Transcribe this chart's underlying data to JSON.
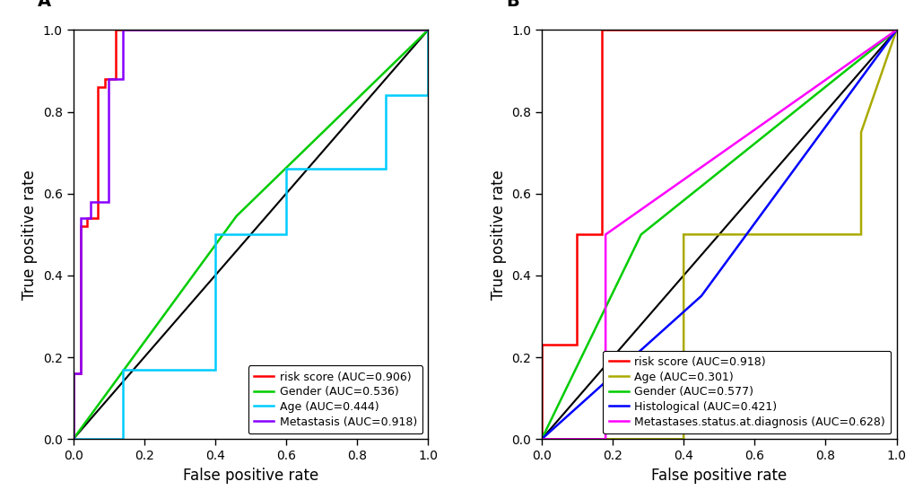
{
  "background_color": "#FFFFFF",
  "linewidth": 1.8,
  "fontsize_label": 12,
  "fontsize_tick": 10,
  "fontsize_title": 14,
  "fontsize_legend": 9,
  "panel_A": {
    "title": "A",
    "xlabel": "False positive rate",
    "ylabel": "True positive rate",
    "curves": [
      {
        "label": "risk score (AUC=0.906)",
        "color": "#FF0000",
        "x": [
          0.0,
          0.0,
          0.02,
          0.02,
          0.04,
          0.04,
          0.07,
          0.07,
          0.09,
          0.09,
          0.12,
          0.12,
          0.16,
          0.16,
          1.0
        ],
        "y": [
          0.0,
          0.16,
          0.16,
          0.52,
          0.52,
          0.54,
          0.54,
          0.86,
          0.86,
          0.88,
          0.88,
          1.0,
          1.0,
          1.0,
          1.0
        ]
      },
      {
        "label": "Gender (AUC=0.536)",
        "color": "#00CC00",
        "x": [
          0.0,
          0.46,
          1.0
        ],
        "y": [
          0.0,
          0.545,
          1.0
        ]
      },
      {
        "label": "Age (AUC=0.444)",
        "color": "#00CCFF",
        "x": [
          0.0,
          0.0,
          0.14,
          0.14,
          0.4,
          0.4,
          0.6,
          0.6,
          0.88,
          0.88,
          1.0,
          1.0
        ],
        "y": [
          0.0,
          0.0,
          0.0,
          0.17,
          0.17,
          0.5,
          0.5,
          0.66,
          0.66,
          0.84,
          0.84,
          1.0
        ]
      },
      {
        "label": "Metastasis (AUC=0.918)",
        "color": "#8800FF",
        "x": [
          0.0,
          0.0,
          0.02,
          0.02,
          0.05,
          0.05,
          0.1,
          0.1,
          0.14,
          0.14,
          0.17,
          0.17,
          1.0
        ],
        "y": [
          0.0,
          0.16,
          0.16,
          0.54,
          0.54,
          0.58,
          0.58,
          0.88,
          0.88,
          1.0,
          1.0,
          1.0,
          1.0
        ]
      }
    ]
  },
  "panel_B": {
    "title": "B",
    "xlabel": "False positive rate",
    "ylabel": "True positive rate",
    "curves": [
      {
        "label": "risk score (AUC=0.918)",
        "color": "#FF0000",
        "x": [
          0.0,
          0.0,
          0.1,
          0.1,
          0.17,
          0.17,
          1.0,
          1.0
        ],
        "y": [
          0.0,
          0.23,
          0.23,
          0.5,
          0.5,
          1.0,
          1.0,
          1.0
        ]
      },
      {
        "label": "Age (AUC=0.301)",
        "color": "#AAAA00",
        "x": [
          0.0,
          0.4,
          0.4,
          0.9,
          0.9,
          1.0
        ],
        "y": [
          0.0,
          0.0,
          0.5,
          0.5,
          0.75,
          1.0
        ]
      },
      {
        "label": "Gender (AUC=0.577)",
        "color": "#00CC00",
        "x": [
          0.0,
          0.28,
          1.0
        ],
        "y": [
          0.0,
          0.5,
          1.0
        ]
      },
      {
        "label": "Histological (AUC=0.421)",
        "color": "#0000FF",
        "x": [
          0.0,
          0.45,
          1.0
        ],
        "y": [
          0.0,
          0.35,
          1.0
        ]
      },
      {
        "label": "Metastases.status.at.diagnosis (AUC=0.628)",
        "color": "#FF00FF",
        "x": [
          0.0,
          0.18,
          0.18,
          1.0
        ],
        "y": [
          0.0,
          0.0,
          0.5,
          1.0
        ]
      }
    ]
  }
}
